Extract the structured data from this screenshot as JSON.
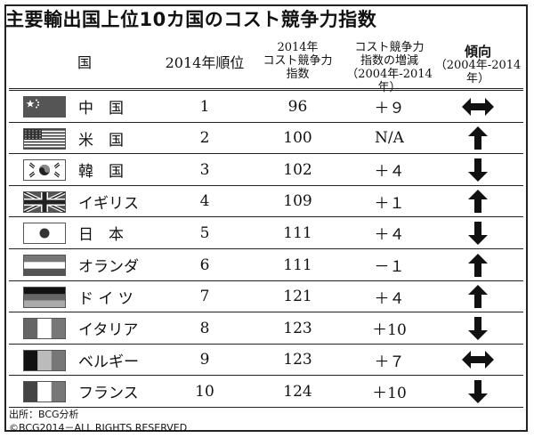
{
  "title": "主要輸出国上位10カ国のコスト競争力指数",
  "headers": {
    "country": "国",
    "rank": "2014年順位",
    "index_l1": "2014年",
    "index_l2": "コスト競争力",
    "index_l3": "指数",
    "change_l1": "コスト競争力",
    "change_l2": "指数の増減",
    "change_l3": "（2004年-2014年）",
    "trend_l1": "傾向",
    "trend_l2": "（2004年-2014年）"
  },
  "chart_data": {
    "type": "table",
    "title": "主要輸出国上位10カ国のコスト競争力指数",
    "columns": [
      "国",
      "2014年順位",
      "2014年コスト競争力指数",
      "コスト競争力指数の増減（2004年-2014年）",
      "傾向（2004年-2014年）"
    ],
    "rows": [
      {
        "country": "中　国",
        "flag": "china-flag-icon",
        "rank": "1",
        "index": "96",
        "change": "＋９",
        "trend": "both"
      },
      {
        "country": "米　国",
        "flag": "usa-flag-icon",
        "rank": "2",
        "index": "100",
        "change": "N/A",
        "trend": "up"
      },
      {
        "country": "韓　国",
        "flag": "korea-flag-icon",
        "rank": "3",
        "index": "102",
        "change": "＋４",
        "trend": "down"
      },
      {
        "country": "イギリス",
        "flag": "uk-flag-icon",
        "rank": "4",
        "index": "109",
        "change": "＋１",
        "trend": "up"
      },
      {
        "country": "日　本",
        "flag": "japan-flag-icon",
        "rank": "5",
        "index": "111",
        "change": "＋４",
        "trend": "down"
      },
      {
        "country": "オランダ",
        "flag": "netherlands-flag-icon",
        "rank": "6",
        "index": "111",
        "change": "－１",
        "trend": "up"
      },
      {
        "country": "ド イ ツ",
        "flag": "germany-flag-icon",
        "rank": "7",
        "index": "121",
        "change": "＋４",
        "trend": "up"
      },
      {
        "country": "イタリア",
        "flag": "italy-flag-icon",
        "rank": "8",
        "index": "123",
        "change": "＋10",
        "trend": "down"
      },
      {
        "country": "ベルギー",
        "flag": "belgium-flag-icon",
        "rank": "9",
        "index": "123",
        "change": "＋７",
        "trend": "both"
      },
      {
        "country": "フランス",
        "flag": "france-flag-icon",
        "rank": "10",
        "index": "124",
        "change": "＋10",
        "trend": "down"
      }
    ]
  },
  "source": "出所：BCG分析",
  "copyright": "©BCG2014－ALL RIGHTS RESERVED"
}
